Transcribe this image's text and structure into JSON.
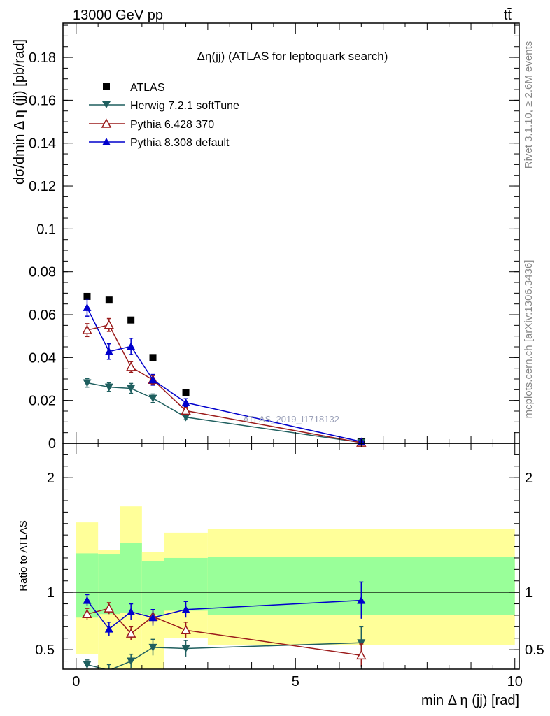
{
  "header": {
    "energy_label": "13000 GeV pp",
    "process_label": "tt̄"
  },
  "side_labels": {
    "rivet": "Rivet 3.1.10, ≥ 2.6M events",
    "mcplots": "mcplots.cern.ch [arXiv:1306.3436]"
  },
  "chart_data": [
    {
      "type": "scatter",
      "title": "Δη(jj) (ATLAS for leptoquark search)",
      "watermark": "ATLAS_2019_I1718132",
      "ylabel": "dσ/dmin Δ η (jj) [pb/rad]",
      "xlim": [
        -0.3,
        10.1
      ],
      "ylim": [
        0,
        0.196
      ],
      "yticks": [
        "0",
        "0.02",
        "0.04",
        "0.06",
        "0.08",
        "0.1",
        "0.12",
        "0.14",
        "0.16",
        "0.18"
      ],
      "grid": false,
      "legend_position": "top-left",
      "legend": [
        "ATLAS",
        "Herwig 7.2.1 softTune",
        "Pythia 6.428 370",
        "Pythia 8.308 default"
      ],
      "x": [
        0.25,
        0.75,
        1.25,
        1.75,
        2.5,
        6.5
      ],
      "series": [
        {
          "name": "ATLAS",
          "color": "#000000",
          "marker": "square",
          "values": [
            0.0685,
            0.0668,
            0.0575,
            0.04,
            0.0235,
            0.0008
          ]
        },
        {
          "name": "Herwig 7.2.1 softTune",
          "color": "#1f5f5f",
          "marker": "triangle-down",
          "values": [
            0.0282,
            0.0262,
            0.0256,
            0.021,
            0.0122,
            0.0004
          ],
          "errors": [
            0.002,
            0.002,
            0.0023,
            0.002,
            0.0012,
            0.0001
          ]
        },
        {
          "name": "Pythia 6.428 370",
          "color": "#9b1b1b",
          "marker": "triangle-up-open",
          "values": [
            0.0528,
            0.0552,
            0.0356,
            0.0296,
            0.0152,
            0.0003
          ],
          "errors": [
            0.003,
            0.003,
            0.0025,
            0.002,
            0.0015,
            0.0001
          ]
        },
        {
          "name": "Pythia 8.308 default",
          "color": "#0000cc",
          "marker": "triangle-up",
          "values": [
            0.0633,
            0.0428,
            0.0452,
            0.0296,
            0.019,
            0.0008
          ],
          "errors": [
            0.004,
            0.0036,
            0.0038,
            0.0025,
            0.0018,
            0.0001
          ]
        }
      ]
    },
    {
      "type": "scatter",
      "ylabel": "Ratio to ATLAS",
      "xlabel": "min Δ η (jj) [rad]",
      "xlim": [
        -0.3,
        10.1
      ],
      "ylim": [
        0.33,
        2.3
      ],
      "xticks": [
        "0",
        "5",
        "10"
      ],
      "yticks": [
        "0.5",
        "1",
        "2"
      ],
      "reference": 1,
      "bin_edges": [
        0,
        0.5,
        1.0,
        1.5,
        2.0,
        3.0,
        10.0
      ],
      "band_inner": [
        [
          0.78,
          1.34
        ],
        [
          0.81,
          1.33
        ],
        [
          0.82,
          1.43
        ],
        [
          0.8,
          1.27
        ],
        [
          0.84,
          1.3
        ],
        [
          0.8,
          1.31
        ]
      ],
      "band_outer": [
        [
          0.46,
          1.61
        ],
        [
          0.33,
          1.37
        ],
        [
          0.33,
          1.75
        ],
        [
          0.33,
          1.35
        ],
        [
          0.6,
          1.52
        ],
        [
          0.54,
          1.55
        ]
      ],
      "x": [
        0.25,
        0.75,
        1.25,
        1.75,
        2.5,
        6.5
      ],
      "series": [
        {
          "name": "Herwig 7.2.1 softTune",
          "color": "#1f5f5f",
          "marker": "triangle-down",
          "values": [
            0.37,
            0.32,
            0.4,
            0.52,
            0.51,
            0.56
          ],
          "errors": [
            0.04,
            0.05,
            0.06,
            0.07,
            0.07,
            0.14
          ]
        },
        {
          "name": "Pythia 6.428 370",
          "color": "#9b1b1b",
          "marker": "triangle-up-open",
          "values": [
            0.81,
            0.86,
            0.64,
            0.79,
            0.67,
            0.45
          ],
          "errors": [
            0.05,
            0.05,
            0.06,
            0.06,
            0.07,
            0.1
          ]
        },
        {
          "name": "Pythia 8.308 default",
          "color": "#0000cc",
          "marker": "triangle-up",
          "values": [
            0.93,
            0.68,
            0.83,
            0.78,
            0.85,
            0.93
          ],
          "errors": [
            0.05,
            0.06,
            0.07,
            0.07,
            0.07,
            0.16
          ]
        }
      ]
    }
  ]
}
